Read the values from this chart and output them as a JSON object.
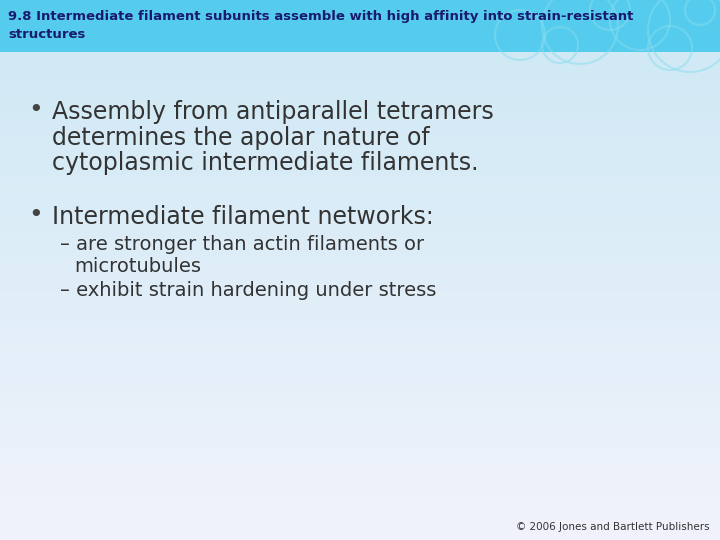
{
  "title_line1": "9.8 Intermediate filament subunits assemble with high affinity into strain-resistant",
  "title_line2": "structures",
  "title_fontsize": 9.5,
  "title_color": "#1a1a6e",
  "title_bg_color": "#55ccee",
  "background_top_color": "#cce8f4",
  "background_bottom_color": "#f0faff",
  "bullet1_text_line1": "Assembly from antiparallel tetramers",
  "bullet1_text_line2": "determines the apolar nature of",
  "bullet1_text_line3": "cytoplasmic intermediate filaments.",
  "bullet1_fontsize": 17,
  "bullet2_text": "Intermediate filament networks:",
  "bullet2_fontsize": 17,
  "sub1_line1": "– are stronger than actin filaments or",
  "sub1_line2": "microtubules",
  "sub2_text": "– exhibit strain hardening under stress",
  "sub_fontsize": 14,
  "footer_text": "© 2006 Jones and Bartlett Publishers",
  "footer_fontsize": 7.5,
  "text_color": "#333333",
  "bullet_color": "#444444"
}
